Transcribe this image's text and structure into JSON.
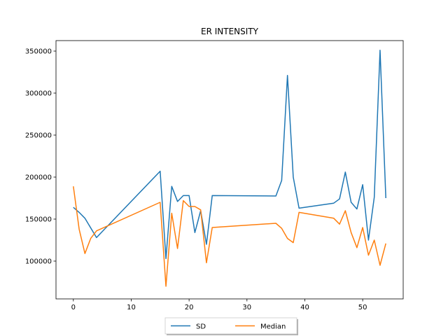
{
  "chart_data": {
    "type": "line",
    "title": "ER INTENSITY",
    "xlabel": "",
    "ylabel": "",
    "xlim": [
      -3,
      57
    ],
    "ylim": [
      55000,
      362500
    ],
    "xticks": [
      0,
      10,
      20,
      30,
      40,
      50
    ],
    "yticks": [
      100000,
      150000,
      200000,
      250000,
      300000,
      350000
    ],
    "grid": false,
    "legend_position": "bottom-center",
    "series": [
      {
        "name": "SD",
        "color": "#1f77b4",
        "x": [
          0,
          1,
          2,
          4,
          15,
          16,
          17,
          18,
          19,
          20,
          21,
          22,
          23,
          24,
          35,
          36,
          37,
          38,
          39,
          45,
          46,
          47,
          48,
          49,
          50,
          51,
          52,
          53,
          54
        ],
        "y": [
          164000,
          158000,
          151000,
          128000,
          207000,
          103000,
          189000,
          171000,
          178000,
          178000,
          134000,
          160000,
          120000,
          178000,
          177500,
          196000,
          321000,
          200000,
          163000,
          169000,
          174000,
          206000,
          170000,
          162000,
          191000,
          125000,
          176000,
          351000,
          175000
        ]
      },
      {
        "name": "Median",
        "color": "#ff7f0e",
        "x": [
          0,
          1,
          2,
          3,
          4,
          15,
          16,
          17,
          18,
          19,
          20,
          21,
          22,
          23,
          24,
          35,
          36,
          37,
          38,
          39,
          45,
          46,
          47,
          48,
          49,
          50,
          51,
          52,
          53,
          54
        ],
        "y": [
          189000,
          138000,
          109000,
          127000,
          136000,
          170000,
          70000,
          157000,
          115000,
          172000,
          165000,
          165000,
          161000,
          98000,
          140000,
          145000,
          139000,
          127000,
          122000,
          158000,
          151000,
          144000,
          160000,
          134000,
          116000,
          140000,
          107000,
          125000,
          95000,
          121000
        ]
      }
    ]
  }
}
